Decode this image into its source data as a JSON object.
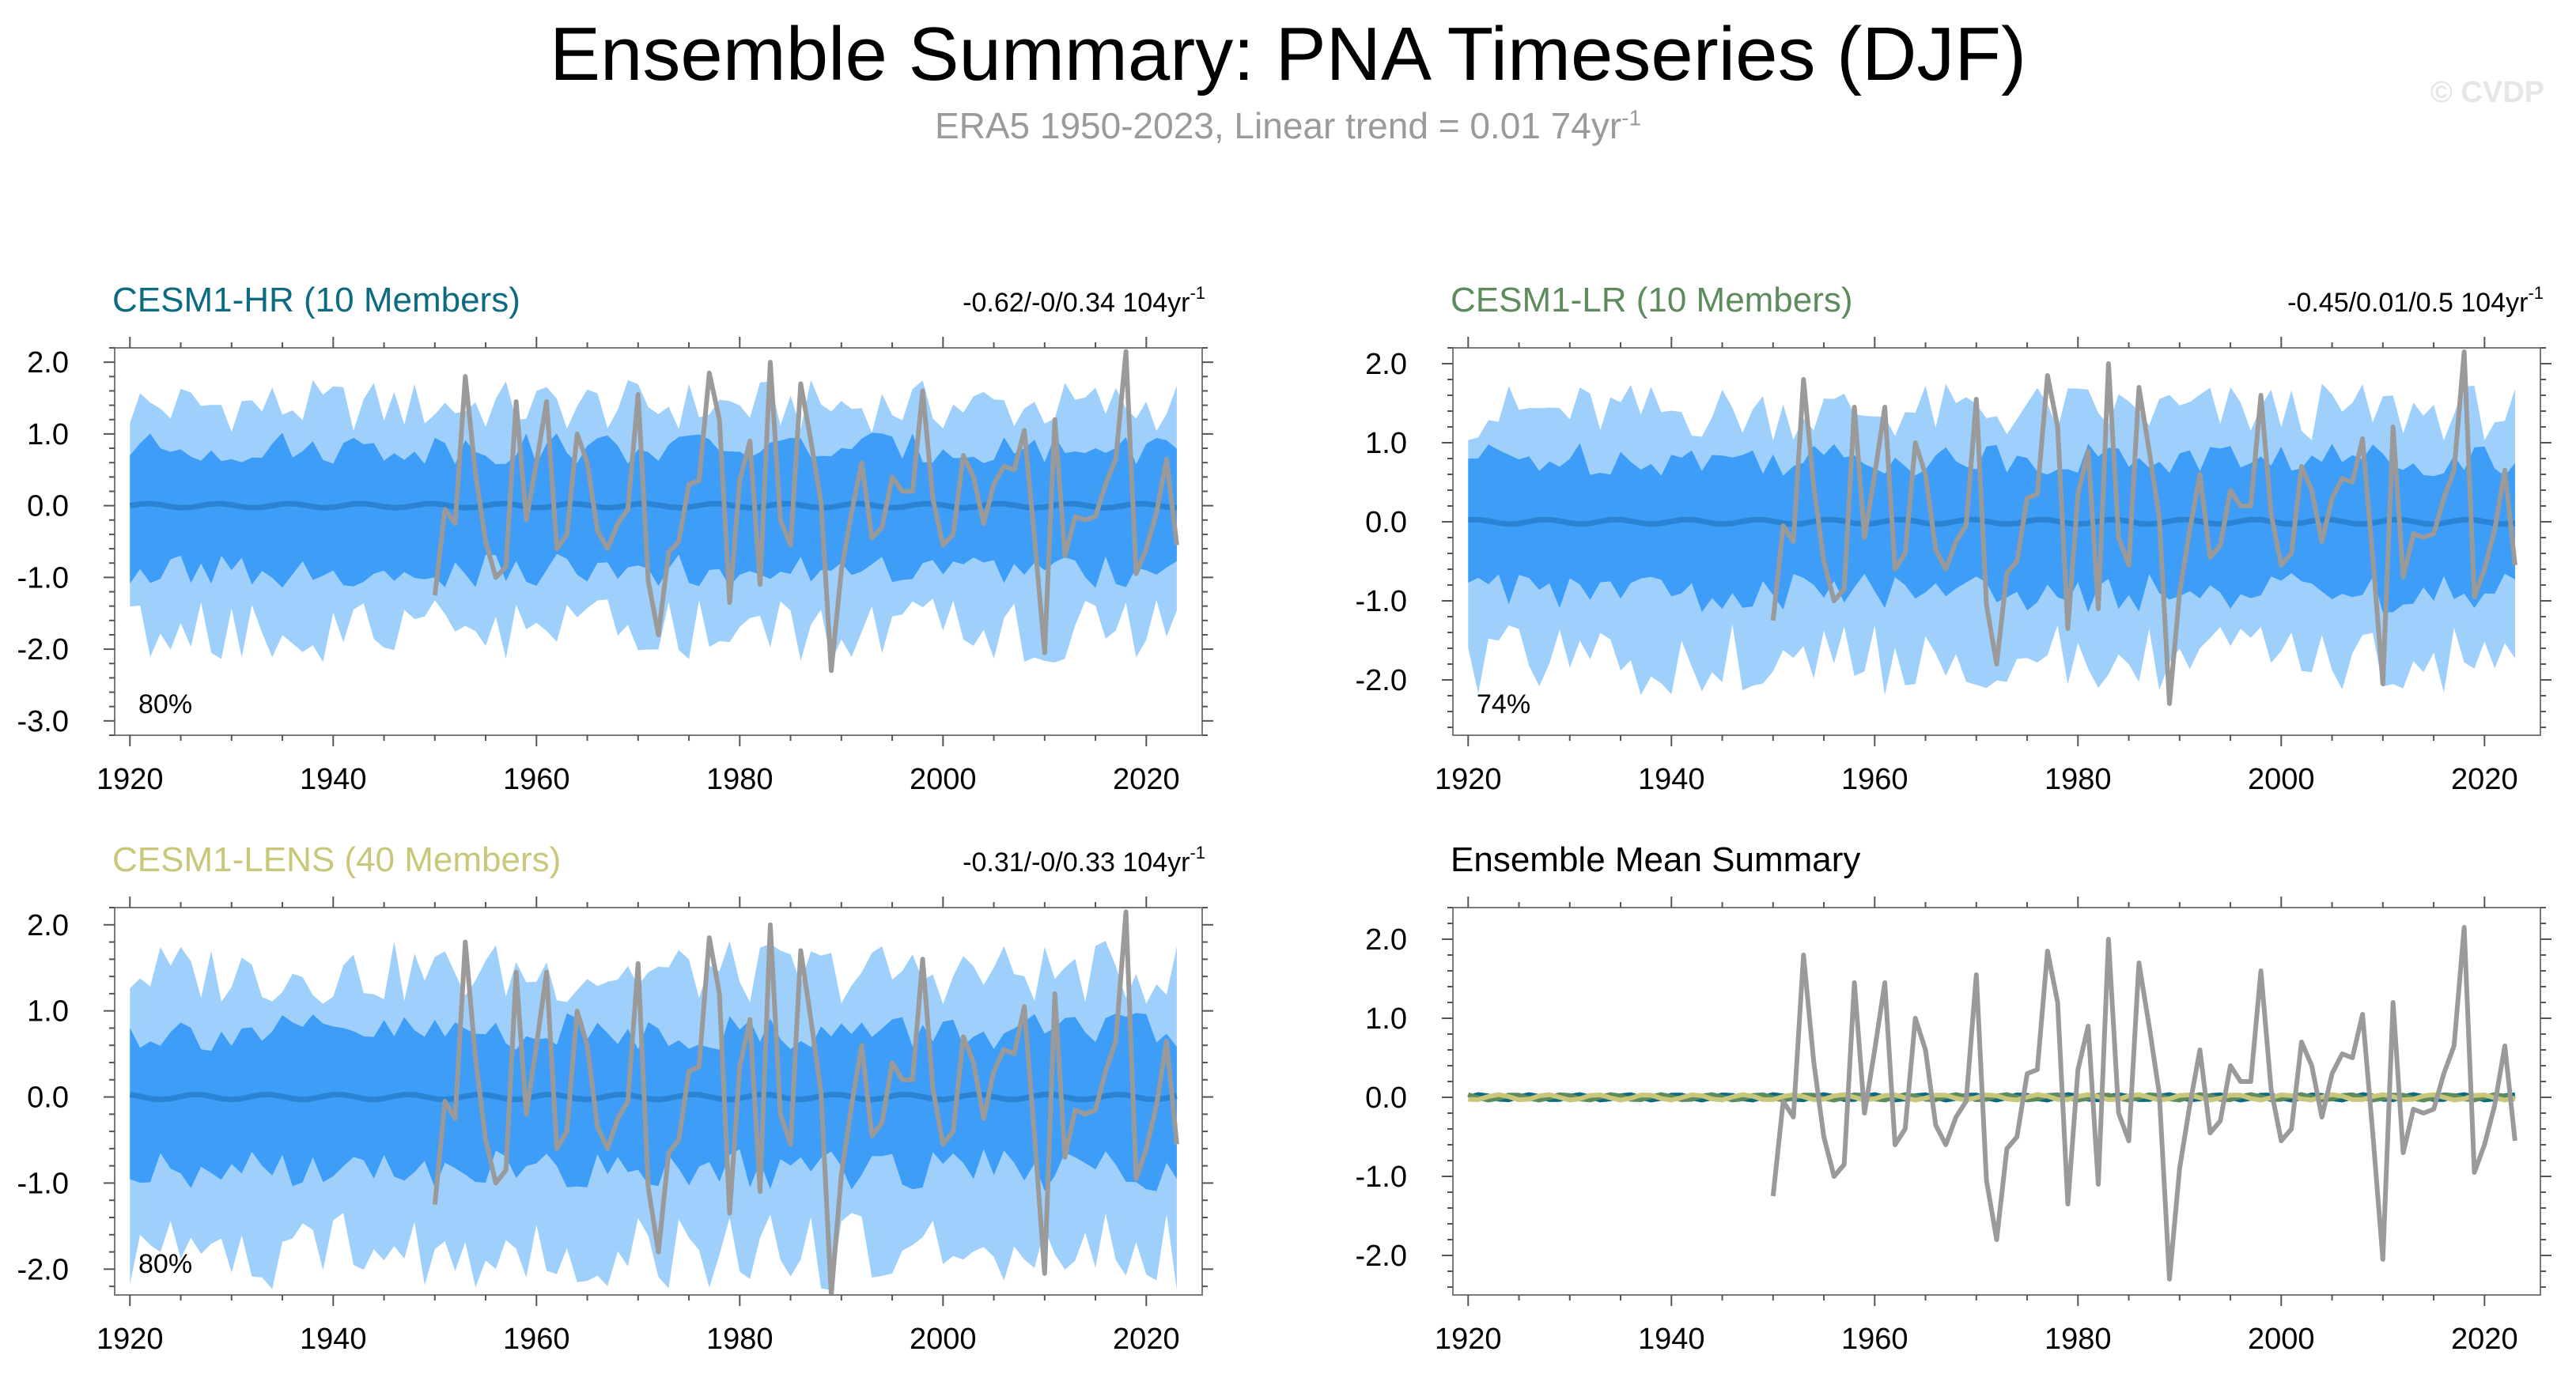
{
  "title": "Ensemble Summary: PNA Timeseries (DJF)",
  "subtitle": {
    "text": "ERA5 1950-2023, Linear trend = 0.01 74yr",
    "superscript": "-1"
  },
  "copyright": "© CVDP",
  "colors": {
    "band_outer": "#9fd0fb",
    "band_inner": "#3d9df7",
    "ens_mean": "#2b83d4",
    "obs": "#9a9a9a",
    "hr": "#0c6b80",
    "lr": "#5d8b5e",
    "lens": "#c8c77a"
  },
  "obs_x": [
    1950,
    1951,
    1952,
    1953,
    1954,
    1955,
    1956,
    1957,
    1958,
    1959,
    1960,
    1961,
    1962,
    1963,
    1964,
    1965,
    1966,
    1967,
    1968,
    1969,
    1970,
    1971,
    1972,
    1973,
    1974,
    1975,
    1976,
    1977,
    1978,
    1979,
    1980,
    1981,
    1982,
    1983,
    1984,
    1985,
    1986,
    1987,
    1988,
    1989,
    1990,
    1991,
    1992,
    1993,
    1994,
    1995,
    1996,
    1997,
    1998,
    1999,
    2000,
    2001,
    2002,
    2003,
    2004,
    2005,
    2006,
    2007,
    2008,
    2009,
    2010,
    2011,
    2012,
    2013,
    2014,
    2015,
    2016,
    2017,
    2018,
    2019,
    2020,
    2021,
    2022,
    2023
  ],
  "obs_values": [
    -1.25,
    -0.05,
    -0.25,
    1.8,
    0.45,
    -0.5,
    -1.0,
    -0.85,
    1.45,
    -0.2,
    0.6,
    1.45,
    -0.6,
    -0.4,
    1.0,
    0.6,
    -0.35,
    -0.6,
    -0.25,
    -0.05,
    1.55,
    -1.05,
    -1.8,
    -0.65,
    -0.5,
    0.3,
    0.35,
    1.85,
    1.2,
    -1.35,
    0.35,
    0.9,
    -1.1,
    2.0,
    -0.2,
    -0.55,
    1.7,
    0.9,
    0.05,
    -2.3,
    -0.9,
    -0.1,
    0.6,
    -0.45,
    -0.3,
    0.4,
    0.2,
    0.2,
    1.6,
    0.1,
    -0.55,
    -0.4,
    0.7,
    0.4,
    -0.25,
    0.3,
    0.55,
    0.5,
    1.05,
    -0.45,
    -2.05,
    1.2,
    -0.7,
    -0.15,
    -0.2,
    -0.15,
    0.3,
    0.65,
    2.15,
    -0.95,
    -0.6,
    -0.1,
    0.65,
    -0.55
  ],
  "panels": [
    {
      "id": "hr",
      "title": "CESM1-HR (10 Members)",
      "trend": "-0.62/-0/0.34 104yr",
      "trend_sup": "-1",
      "pct": "80%",
      "y_range": [
        -3.2,
        2.2
      ],
      "y_ticks": [
        "2.0",
        "1.0",
        "0.0",
        "-1.0",
        "-2.0",
        "-3.0"
      ],
      "x_ticks": [
        "1920",
        "1940",
        "1960",
        "1980",
        "2000",
        "2020"
      ],
      "chart_data": {
        "type": "area",
        "series": [
          {
            "name": "CESM1-HR (10 Members)",
            "inner": 0.8,
            "outer": 1.35,
            "mean": 0.0
          }
        ],
        "xlim": [
          1920,
          2023
        ],
        "ylim": [
          -3.2,
          2.2
        ]
      }
    },
    {
      "id": "lr",
      "title": "CESM1-LR (10 Members)",
      "trend": "-0.45/0.01/0.5 104yr",
      "trend_sup": "-1",
      "pct": "74%",
      "y_range": [
        -2.7,
        2.2
      ],
      "y_ticks": [
        "2.0",
        "1.0",
        "0.0",
        "-1.0",
        "-2.0"
      ],
      "x_ticks": [
        "1920",
        "1940",
        "1960",
        "1980",
        "2000",
        "2020"
      ],
      "chart_data": {
        "type": "area",
        "series": [
          {
            "name": "CESM1-LR (10 Members)",
            "inner": 0.8,
            "outer": 1.35,
            "mean": 0.0
          }
        ],
        "xlim": [
          1920,
          2023
        ],
        "ylim": [
          -2.7,
          2.2
        ]
      }
    },
    {
      "id": "lens",
      "title": "CESM1-LENS (40 Members)",
      "trend": "-0.31/-0/0.33 104yr",
      "trend_sup": "-1",
      "pct": "80%",
      "y_range": [
        -2.3,
        2.2
      ],
      "y_ticks": [
        "2.0",
        "1.0",
        "0.0",
        "-1.0",
        "-2.0"
      ],
      "x_ticks": [
        "1920",
        "1940",
        "1960",
        "1980",
        "2000",
        "2020"
      ],
      "chart_data": {
        "type": "area",
        "series": [
          {
            "name": "CESM1-LENS (40 Members)",
            "inner": 0.75,
            "outer": 1.4,
            "mean": 0.0
          }
        ],
        "xlim": [
          1920,
          2023
        ],
        "ylim": [
          -2.3,
          2.2
        ]
      }
    },
    {
      "id": "summary",
      "title": "Ensemble Mean Summary",
      "y_range": [
        -2.5,
        2.4
      ],
      "y_ticks": [
        "2.0",
        "1.0",
        "0.0",
        "-1.0",
        "-2.0"
      ],
      "x_ticks": [
        "1920",
        "1940",
        "1960",
        "1980",
        "2000",
        "2020"
      ],
      "chart_data": {
        "type": "line",
        "series": [
          {
            "name": "CESM1-HR",
            "mean": 0.0
          },
          {
            "name": "CESM1-LR",
            "mean": 0.0
          },
          {
            "name": "CESM1-LENS",
            "mean": 0.0
          }
        ],
        "xlim": [
          1920,
          2023
        ],
        "ylim": [
          -2.5,
          2.4
        ]
      }
    }
  ]
}
